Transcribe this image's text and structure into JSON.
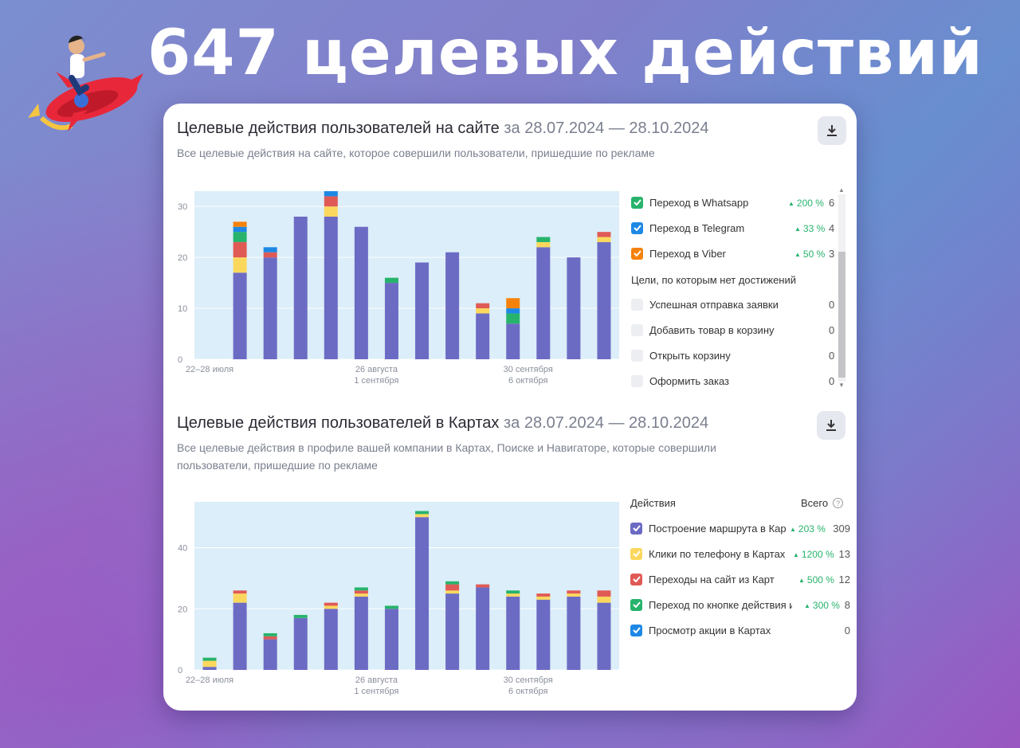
{
  "headline": "647 целевых действий",
  "site_section": {
    "title": "Целевые действия пользователей на сайте",
    "range": "за 28.07.2024 — 28.10.2024",
    "subtitle": "Все целевые действия на сайте, которое совершили пользователи, пришедшие по рекламе",
    "download_icon": "download-icon",
    "legend": [
      {
        "label": "Переход в Whatsapp",
        "color": "#27b36b",
        "checked": true,
        "pct": "200 %",
        "total": "6"
      },
      {
        "label": "Переход в Telegram",
        "color": "#1e88e5",
        "checked": true,
        "pct": "33 %",
        "total": "4"
      },
      {
        "label": "Переход в Viber",
        "color": "#f5820b",
        "checked": true,
        "pct": "50 %",
        "total": "3"
      }
    ],
    "no_goals_title": "Цели, по которым нет достижений",
    "no_goals": [
      {
        "label": "Успешная отправка заявки",
        "total": "0"
      },
      {
        "label": "Добавить товар в корзину",
        "total": "0"
      },
      {
        "label": "Открыть корзину",
        "total": "0"
      },
      {
        "label": "Оформить заказ",
        "total": "0"
      }
    ]
  },
  "maps_section": {
    "title": "Целевые действия пользователей в Картах",
    "range": "за 28.07.2024 — 28.10.2024",
    "subtitle_line1": "Все целевые действия в профиле вашей компании в Картах, Поиске и Навигаторе, которые совершили",
    "subtitle_line2": "пользователи, пришедшие по рекламе",
    "download_icon": "download-icon",
    "legend_header": "Действия",
    "legend_total_header": "Всего",
    "legend": [
      {
        "label": "Построение маршрута в Карт",
        "color": "#6c6bc4",
        "pct": "203 %",
        "total": "309"
      },
      {
        "label": "Клики по телефону в Картах",
        "color": "#fbd85d",
        "pct": "1200 %",
        "total": "13"
      },
      {
        "label": "Переходы на сайт из Карт",
        "color": "#e05a55",
        "pct": "500 %",
        "total": "12"
      },
      {
        "label": "Переход по кнопке действия из",
        "color": "#27b36b",
        "pct": "300 %",
        "total": "8"
      },
      {
        "label": "Просмотр акции в Картах",
        "color": "#1e88e5",
        "pct": "",
        "total": "0"
      }
    ]
  },
  "chart_data": [
    {
      "type": "bar",
      "stacked": true,
      "yticks": [
        "0",
        "10",
        "20",
        "30"
      ],
      "ylim": [
        0,
        33
      ],
      "xtick_labels": [
        {
          "line1": "22–28 июля",
          "line2": "",
          "index": 0
        },
        {
          "line1": "26 августа",
          "line2": "1 сентября",
          "index": 5
        },
        {
          "line1": "30 сентября",
          "line2": "6 октября",
          "index": 10
        }
      ],
      "series": [
        {
          "name": "purple",
          "color": "#6c6bc4",
          "values": [
            0,
            17,
            20,
            28,
            28,
            26,
            15,
            19,
            21,
            9,
            7,
            22,
            20,
            23
          ]
        },
        {
          "name": "yellow",
          "color": "#fbd85d",
          "values": [
            0,
            3,
            0,
            0,
            2,
            0,
            0,
            0,
            0,
            1,
            0,
            1,
            0,
            1
          ]
        },
        {
          "name": "red",
          "color": "#e05a55",
          "values": [
            0,
            3,
            1,
            0,
            2,
            0,
            0,
            0,
            0,
            1,
            0,
            0,
            0,
            1
          ]
        },
        {
          "name": "green",
          "color": "#27b36b",
          "values": [
            0,
            2,
            0,
            0,
            0,
            0,
            1,
            0,
            0,
            0,
            2,
            1,
            0,
            0
          ]
        },
        {
          "name": "blue",
          "color": "#1e88e5",
          "values": [
            0,
            1,
            1,
            0,
            1,
            0,
            0,
            0,
            0,
            0,
            1,
            0,
            0,
            0
          ]
        },
        {
          "name": "orange",
          "color": "#f5820b",
          "values": [
            0,
            1,
            0,
            0,
            0,
            0,
            0,
            0,
            0,
            0,
            2,
            0,
            0,
            0
          ]
        }
      ]
    },
    {
      "type": "bar",
      "stacked": true,
      "yticks": [
        "0",
        "20",
        "40"
      ],
      "ylim": [
        0,
        55
      ],
      "xtick_labels": [
        {
          "line1": "22–28 июля",
          "line2": "",
          "index": 0
        },
        {
          "line1": "26 августа",
          "line2": "1 сентября",
          "index": 5
        },
        {
          "line1": "30 сентября",
          "line2": "6 октября",
          "index": 10
        }
      ],
      "series": [
        {
          "name": "Построение маршрута в Карт",
          "color": "#6c6bc4",
          "values": [
            1,
            22,
            10,
            17,
            20,
            24,
            20,
            50,
            25,
            27,
            24,
            23,
            24,
            22
          ]
        },
        {
          "name": "Клики по телефону в Картах",
          "color": "#fbd85d",
          "values": [
            2,
            3,
            0,
            0,
            1,
            1,
            0,
            1,
            1,
            0,
            1,
            1,
            1,
            2
          ]
        },
        {
          "name": "Переходы на сайт из Карт",
          "color": "#e05a55",
          "values": [
            0,
            1,
            1,
            0,
            1,
            1,
            0,
            0,
            2,
            1,
            0,
            1,
            1,
            2
          ]
        },
        {
          "name": "Переход по кнопке действия из",
          "color": "#27b36b",
          "values": [
            1,
            0,
            1,
            1,
            0,
            1,
            1,
            1,
            1,
            0,
            1,
            0,
            0,
            0
          ]
        }
      ]
    }
  ]
}
